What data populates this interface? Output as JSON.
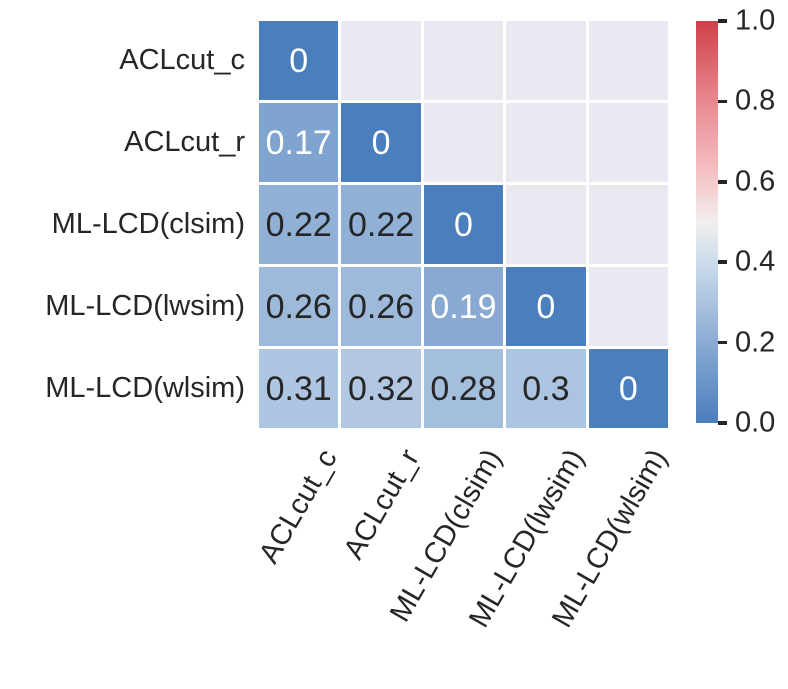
{
  "chart_data": {
    "type": "heatmap",
    "title": "",
    "xlabel": "",
    "ylabel": "",
    "categories": [
      "ACLcut_c",
      "ACLcut_r",
      "ML-LCD(clsim)",
      "ML-LCD(lwsim)",
      "ML-LCD(wlsim)"
    ],
    "mask": "upper-triangle",
    "cells": [
      [
        {
          "value": 0,
          "label": "0"
        },
        null,
        null,
        null,
        null
      ],
      [
        {
          "value": 0.17,
          "label": "0.17"
        },
        {
          "value": 0,
          "label": "0"
        },
        null,
        null,
        null
      ],
      [
        {
          "value": 0.22,
          "label": "0.22"
        },
        {
          "value": 0.22,
          "label": "0.22"
        },
        {
          "value": 0,
          "label": "0"
        },
        null,
        null
      ],
      [
        {
          "value": 0.26,
          "label": "0.26"
        },
        {
          "value": 0.26,
          "label": "0.26"
        },
        {
          "value": 0.19,
          "label": "0.19"
        },
        {
          "value": 0,
          "label": "0"
        },
        null
      ],
      [
        {
          "value": 0.31,
          "label": "0.31"
        },
        {
          "value": 0.32,
          "label": "0.32"
        },
        {
          "value": 0.28,
          "label": "0.28"
        },
        {
          "value": 0.3,
          "label": "0.3"
        },
        {
          "value": 0,
          "label": "0"
        }
      ]
    ],
    "colormap_stops": [
      {
        "value": 0.0,
        "color": "#4a7ebc"
      },
      {
        "value": 0.2,
        "color": "#8aabd3"
      },
      {
        "value": 0.4,
        "color": "#ccdcec"
      },
      {
        "value": 0.5,
        "color": "#f1efee"
      },
      {
        "value": 0.6,
        "color": "#f5c9cb"
      },
      {
        "value": 0.8,
        "color": "#e9888f"
      },
      {
        "value": 1.0,
        "color": "#d03f48"
      }
    ],
    "masked_cell_color": "#e9e9f1",
    "grid_line_color": "#ffffff",
    "annot_text_dark": "#262626",
    "annot_text_light": "#ffffff",
    "annot_white_below": 0.21,
    "colorbar": {
      "range": [
        0.0,
        1.0
      ],
      "ticks": [
        {
          "value": 0.0,
          "label": "0.0"
        },
        {
          "value": 0.2,
          "label": "0.2"
        },
        {
          "value": 0.4,
          "label": "0.4"
        },
        {
          "value": 0.6,
          "label": "0.6"
        },
        {
          "value": 0.8,
          "label": "0.8"
        },
        {
          "value": 1.0,
          "label": "1.0"
        }
      ]
    }
  }
}
